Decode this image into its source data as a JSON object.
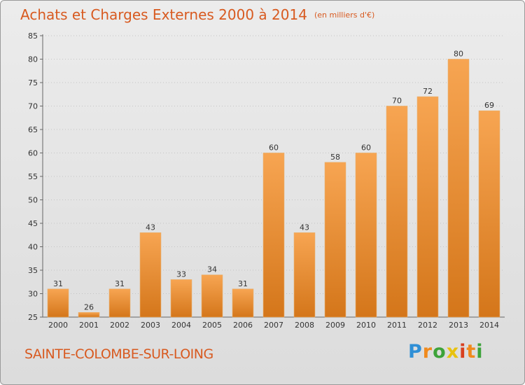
{
  "header": {
    "title": "Achats et Charges Externes 2000 à 2014",
    "subtitle": "(en milliers d'€)"
  },
  "footer": {
    "commune": "SAINTE-COLOMBE-SUR-LOING",
    "logo_letters": [
      "P",
      "r",
      "o",
      "x",
      "i",
      "t",
      "i"
    ]
  },
  "colors": {
    "bar_light": "#f7a552",
    "bar_dark": "#d4761a",
    "title": "#d85a20"
  },
  "chart_data": {
    "type": "bar",
    "title": "Achats et Charges Externes 2000 à 2014",
    "subtitle": "(en milliers d'€)",
    "categories": [
      "2000",
      "2001",
      "2002",
      "2003",
      "2004",
      "2005",
      "2006",
      "2007",
      "2008",
      "2009",
      "2010",
      "2011",
      "2012",
      "2013",
      "2014"
    ],
    "values": [
      31,
      26,
      31,
      43,
      33,
      34,
      31,
      60,
      43,
      58,
      60,
      70,
      72,
      80,
      69
    ],
    "ylim": [
      25,
      85
    ],
    "yticks": [
      25,
      30,
      35,
      40,
      45,
      50,
      55,
      60,
      65,
      70,
      75,
      80,
      85
    ],
    "grid": true
  }
}
